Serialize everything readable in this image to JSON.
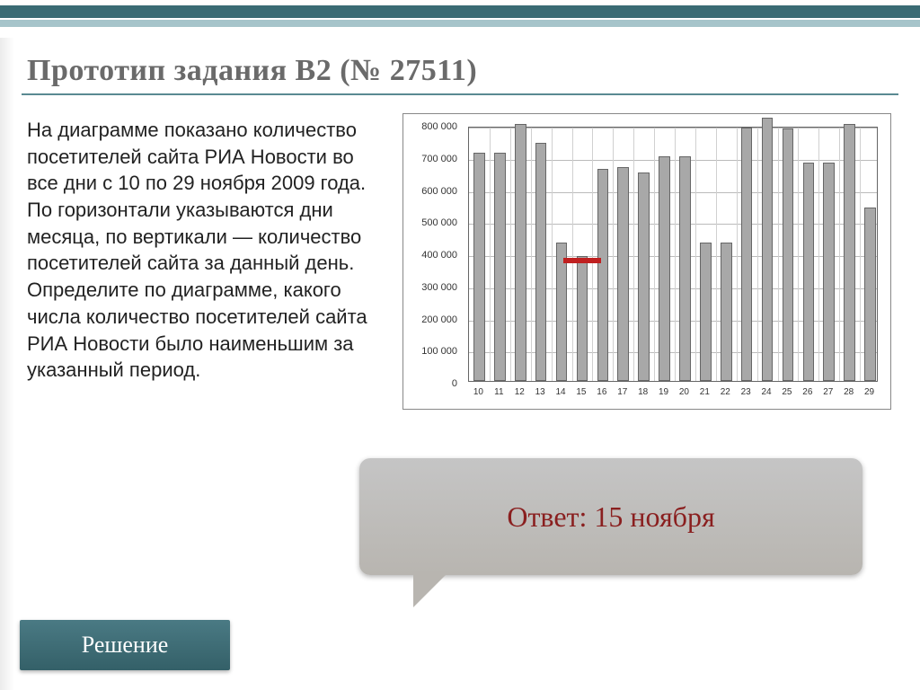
{
  "header": {
    "title": "Прототип задания B2 (№ 27511)",
    "underline_color": "#5a8a92",
    "border_dark": "#3a6b74",
    "border_light": "#a6c4ca"
  },
  "problem": {
    "text": "На диаграмме показано количество посетителей сайта РИА Новости во все дни с 10 по 29 ноября 2009 года. По горизонтали указываются дни месяца, по вертикали — количество посетителей сайта за данный день. Определите по диаграмме, какого числа количество посетителей сайта РИА Новости было наименьшим за указанный период.",
    "fontsize": 22,
    "color": "#222222"
  },
  "chart": {
    "type": "bar",
    "background_color": "#ffffff",
    "border_color": "#666666",
    "grid_color": "#bbbbbb",
    "bar_color": "#a8a8a8",
    "bar_border_color": "#666666",
    "ylim": [
      0,
      800000
    ],
    "yticks": [
      0,
      100000,
      200000,
      300000,
      400000,
      500000,
      600000,
      700000,
      800000
    ],
    "ytick_labels": [
      "0",
      "100 000",
      "200 000",
      "300 000",
      "400 000",
      "500 000",
      "600 000",
      "700 000",
      "800 000"
    ],
    "categories": [
      "10",
      "11",
      "12",
      "13",
      "14",
      "15",
      "16",
      "17",
      "18",
      "19",
      "20",
      "21",
      "22",
      "23",
      "24",
      "25",
      "26",
      "27",
      "28",
      "29"
    ],
    "values": [
      710000,
      710000,
      800000,
      740000,
      430000,
      390000,
      660000,
      665000,
      650000,
      700000,
      700000,
      430000,
      430000,
      790000,
      820000,
      785000,
      680000,
      680000,
      800000,
      540000
    ],
    "bar_width_ratio": 0.55,
    "label_fontsize": 11,
    "highlight": {
      "day_index": 5,
      "color": "#c02020",
      "y_value": 390000
    }
  },
  "answer": {
    "label": "Ответ: 15 ноября",
    "color": "#8a1f1f",
    "fontsize": 32,
    "bubble_bg": "#bdbab5"
  },
  "solution_button": {
    "label": "Решение",
    "bg": "#3d6f78",
    "color": "#ffffff",
    "fontsize": 26
  }
}
